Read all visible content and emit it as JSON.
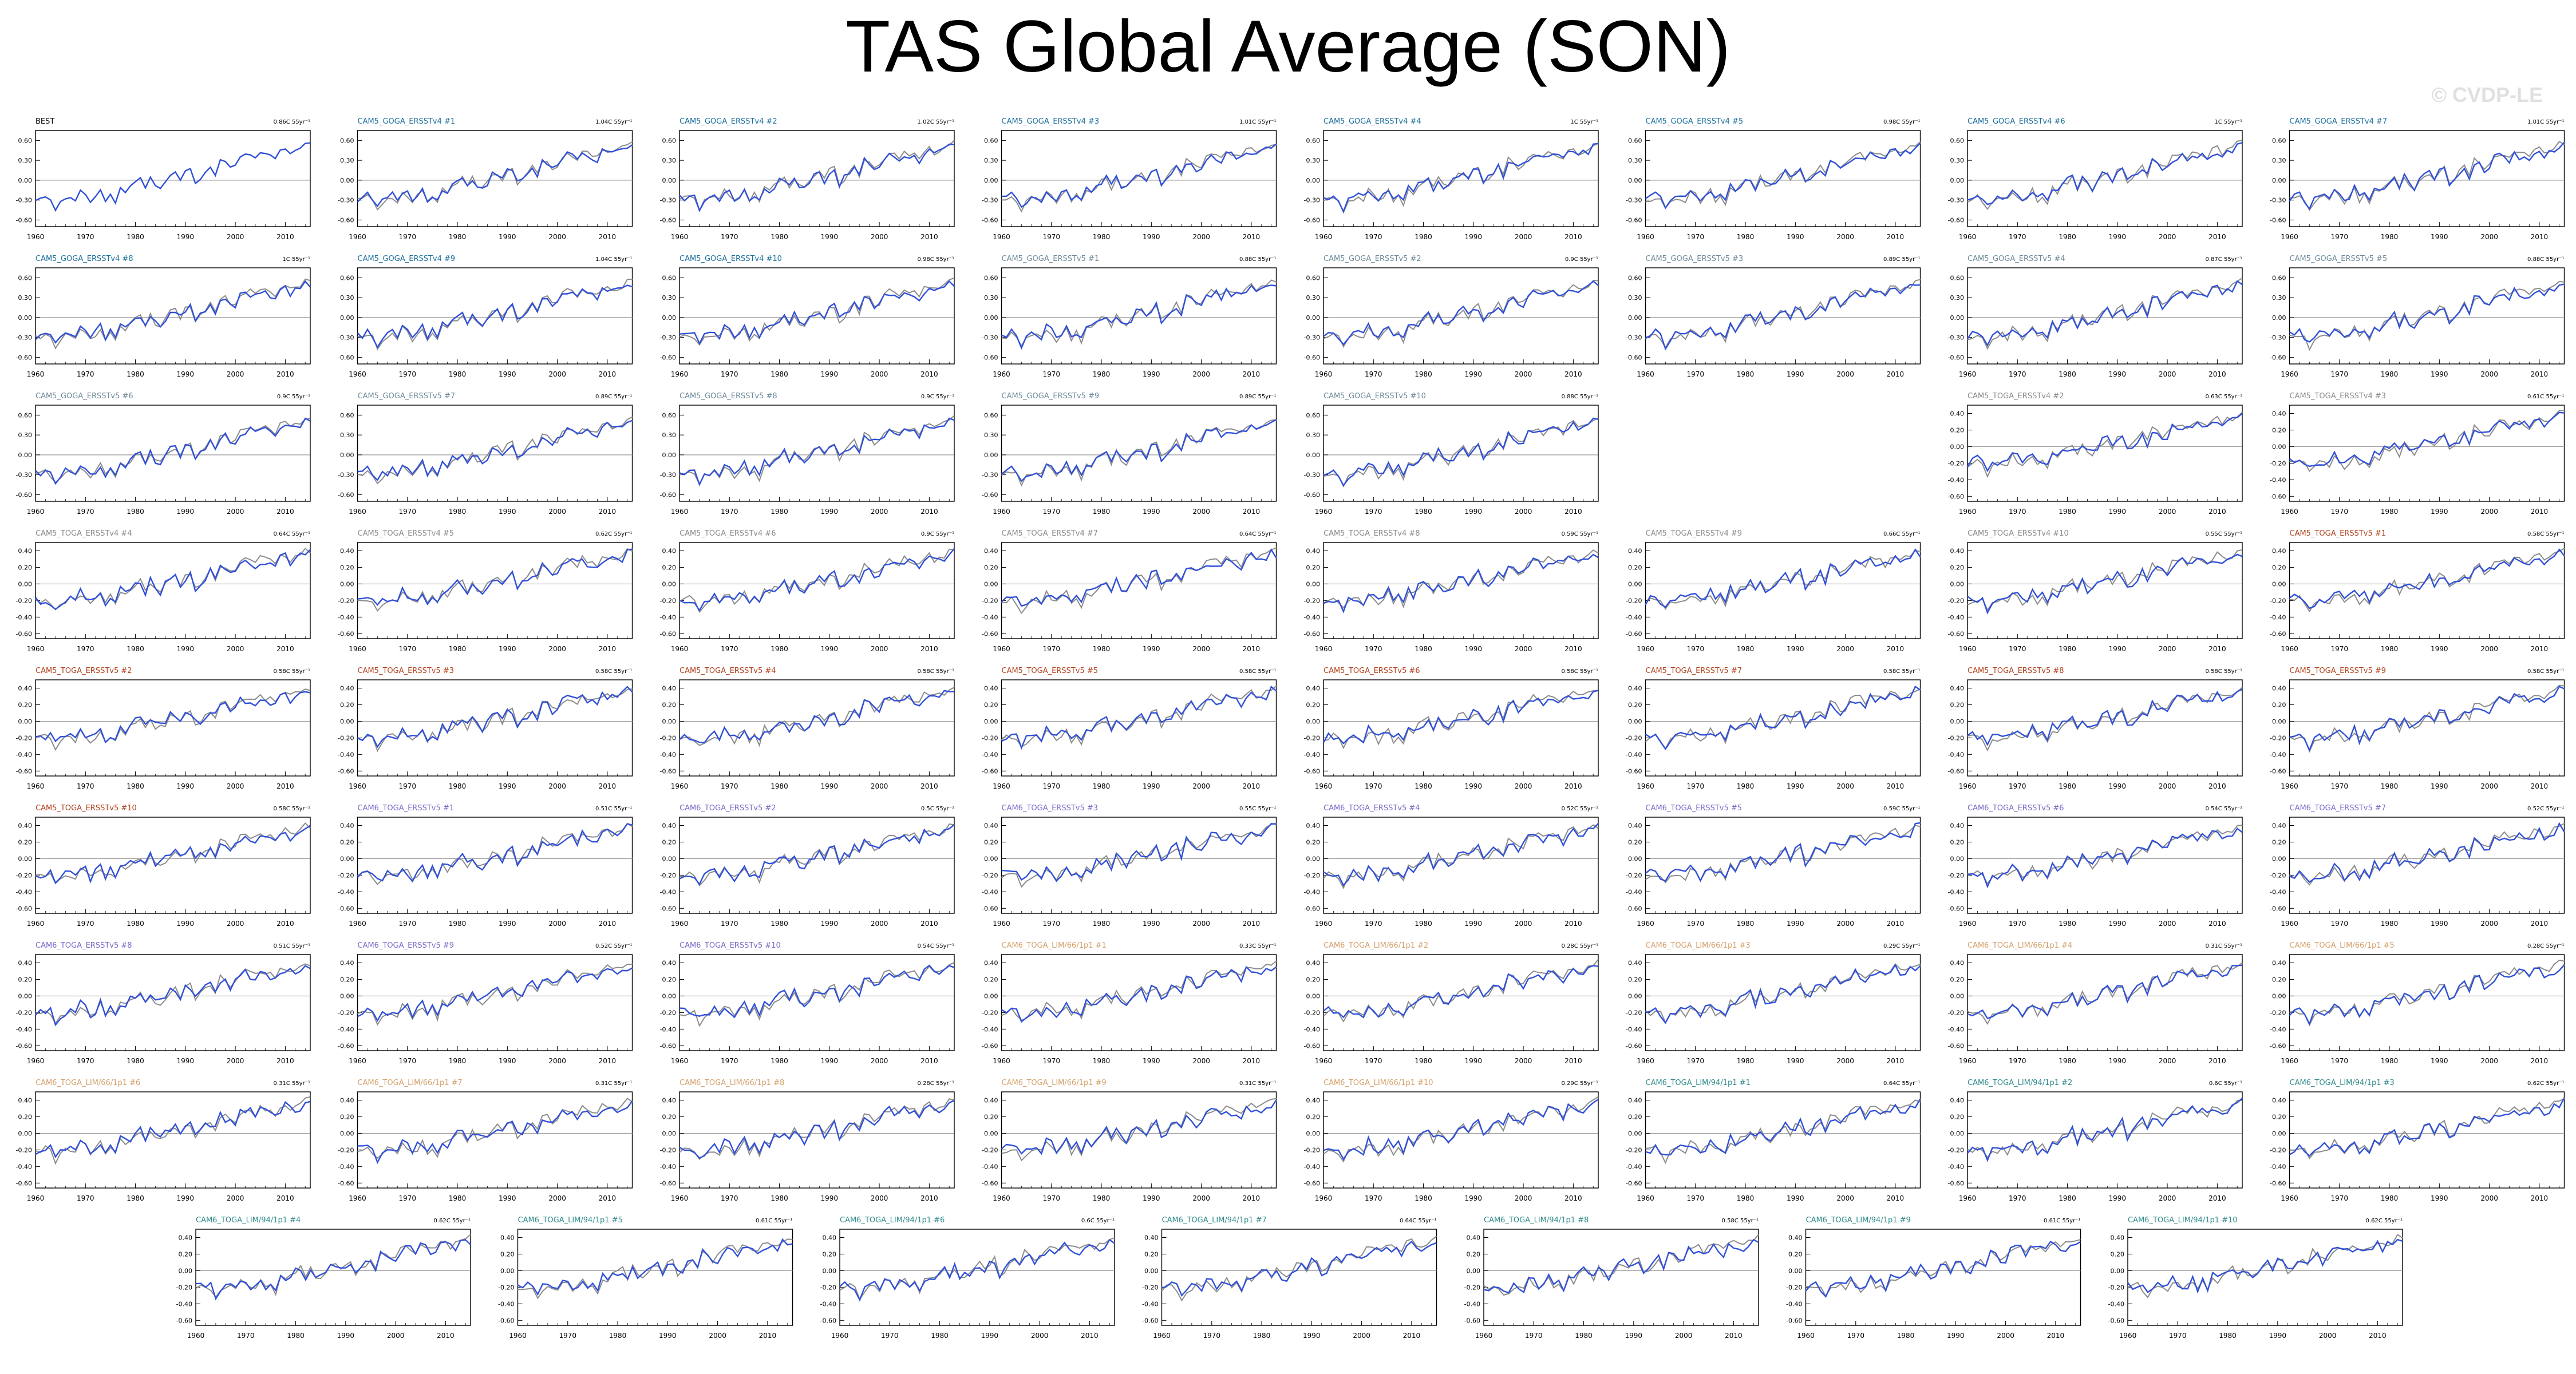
{
  "title": "TAS Global Average (SON)",
  "watermark": "© CVDP-LE",
  "chart_data": {
    "type": "line",
    "x_range": [
      1960,
      2015
    ],
    "x_ticks": [
      1960,
      1970,
      1980,
      1990,
      2000,
      2010
    ],
    "gridline_y": 0,
    "colors": {
      "obs": "#8c8c8c",
      "model": "#3050d8",
      "axis": "#000000"
    },
    "y_ticks_60": [
      "0.60",
      "0.30",
      "0.00",
      "-0.30",
      "-0.60"
    ],
    "y_ticks_40": [
      "0.40",
      "0.20",
      "0.00",
      "-0.20",
      "-0.40",
      "-0.60"
    ],
    "base_series": [
      -0.3,
      -0.28,
      -0.25,
      -0.3,
      -0.45,
      -0.33,
      -0.28,
      -0.26,
      -0.31,
      -0.16,
      -0.22,
      -0.33,
      -0.25,
      -0.15,
      -0.31,
      -0.22,
      -0.35,
      -0.12,
      -0.18,
      -0.08,
      -0.02,
      0.03,
      -0.12,
      0.04,
      -0.08,
      -0.12,
      -0.03,
      0.08,
      0.12,
      0.0,
      0.14,
      0.18,
      -0.05,
      0.02,
      0.12,
      0.2,
      0.08,
      0.31,
      0.29,
      0.19,
      0.22,
      0.35,
      0.4,
      0.39,
      0.33,
      0.42,
      0.4,
      0.38,
      0.33,
      0.45,
      0.48,
      0.41,
      0.44,
      0.48,
      0.55,
      0.56
    ],
    "panels": [
      {
        "name": "BEST",
        "trend": "0.86C 55yr⁻¹",
        "color": "#000000",
        "scale": "60",
        "obs": false
      },
      {
        "name": "CAM5_GOGA_ERSSTv4 #1",
        "trend": "1.04C 55yr⁻¹",
        "color": "#1b6f9e",
        "scale": "60",
        "obs": true
      },
      {
        "name": "CAM5_GOGA_ERSSTv4 #2",
        "trend": "1.02C 55yr⁻¹",
        "color": "#1b6f9e",
        "scale": "60",
        "obs": true
      },
      {
        "name": "CAM5_GOGA_ERSSTv4 #3",
        "trend": "1.01C 55yr⁻¹",
        "color": "#1b6f9e",
        "scale": "60",
        "obs": true
      },
      {
        "name": "CAM5_GOGA_ERSSTv4 #4",
        "trend": "1C 55yr⁻¹",
        "color": "#1b6f9e",
        "scale": "60",
        "obs": true
      },
      {
        "name": "CAM5_GOGA_ERSSTv4 #5",
        "trend": "0.98C 55yr⁻¹",
        "color": "#1b6f9e",
        "scale": "60",
        "obs": true
      },
      {
        "name": "CAM5_GOGA_ERSSTv4 #6",
        "trend": "1C 55yr⁻¹",
        "color": "#1b6f9e",
        "scale": "60",
        "obs": true
      },
      {
        "name": "CAM5_GOGA_ERSSTv4 #7",
        "trend": "1.01C 55yr⁻¹",
        "color": "#1b6f9e",
        "scale": "60",
        "obs": true
      },
      {
        "name": "CAM5_GOGA_ERSSTv4 #8",
        "trend": "1C 55yr⁻¹",
        "color": "#1b6f9e",
        "scale": "60",
        "obs": true
      },
      {
        "name": "CAM5_GOGA_ERSSTv4 #9",
        "trend": "1.04C 55yr⁻¹",
        "color": "#1b6f9e",
        "scale": "60",
        "obs": true
      },
      {
        "name": "CAM5_GOGA_ERSSTv4 #10",
        "trend": "0.98C 55yr⁻¹",
        "color": "#1b6f9e",
        "scale": "60",
        "obs": true
      },
      {
        "name": "CAM5_GOGA_ERSSTv5 #1",
        "trend": "0.88C 55yr⁻¹",
        "color": "#6e8a9a",
        "scale": "60",
        "obs": true
      },
      {
        "name": "CAM5_GOGA_ERSSTv5 #2",
        "trend": "0.9C 55yr⁻¹",
        "color": "#6e8a9a",
        "scale": "60",
        "obs": true
      },
      {
        "name": "CAM5_GOGA_ERSSTv5 #3",
        "trend": "0.89C 55yr⁻¹",
        "color": "#6e8a9a",
        "scale": "60",
        "obs": true
      },
      {
        "name": "CAM5_GOGA_ERSSTv5 #4",
        "trend": "0.87C 55yr⁻¹",
        "color": "#6e8a9a",
        "scale": "60",
        "obs": true
      },
      {
        "name": "CAM5_GOGA_ERSSTv5 #5",
        "trend": "0.88C 55yr⁻¹",
        "color": "#6e8a9a",
        "scale": "60",
        "obs": true
      },
      {
        "name": "CAM5_GOGA_ERSSTv5 #6",
        "trend": "0.9C 55yr⁻¹",
        "color": "#6e8a9a",
        "scale": "60",
        "obs": true
      },
      {
        "name": "CAM5_GOGA_ERSSTv5 #7",
        "trend": "0.89C 55yr⁻¹",
        "color": "#6e8a9a",
        "scale": "60",
        "obs": true
      },
      {
        "name": "CAM5_GOGA_ERSSTv5 #8",
        "trend": "0.9C 55yr⁻¹",
        "color": "#6e8a9a",
        "scale": "60",
        "obs": true
      },
      {
        "name": "CAM5_GOGA_ERSSTv5 #9",
        "trend": "0.89C 55yr⁻¹",
        "color": "#6e8a9a",
        "scale": "60",
        "obs": true
      },
      {
        "name": "CAM5_GOGA_ERSSTv5 #10",
        "trend": "0.88C 55yr⁻¹",
        "color": "#6e8a9a",
        "scale": "60",
        "obs": true
      },
      {
        "name": "CAM5_TOGA_ERSSTv4 #2",
        "trend": "0.63C 55yr⁻¹",
        "color": "#8a8a8a",
        "scale": "40",
        "obs": true
      },
      {
        "name": "CAM5_TOGA_ERSSTv4 #3",
        "trend": "0.61C 55yr⁻¹",
        "color": "#8a8a8a",
        "scale": "40",
        "obs": true
      },
      {
        "name": "CAM5_TOGA_ERSSTv4 #4",
        "trend": "0.64C 55yr⁻¹",
        "color": "#8a8a8a",
        "scale": "40",
        "obs": true
      },
      {
        "name": "CAM5_TOGA_ERSSTv4 #5",
        "trend": "0.62C 55yr⁻¹",
        "color": "#8a8a8a",
        "scale": "40",
        "obs": true
      },
      {
        "name": "CAM5_TOGA_ERSSTv4 #6",
        "trend": "0.9C 55yr⁻¹",
        "color": "#8a8a8a",
        "scale": "40",
        "obs": true
      },
      {
        "name": "CAM5_TOGA_ERSSTv4 #7",
        "trend": "0.64C 55yr⁻¹",
        "color": "#8a8a8a",
        "scale": "40",
        "obs": true
      },
      {
        "name": "CAM5_TOGA_ERSSTv4 #8",
        "trend": "0.59C 55yr⁻¹",
        "color": "#8a8a8a",
        "scale": "40",
        "obs": true
      },
      {
        "name": "CAM5_TOGA_ERSSTv4 #9",
        "trend": "0.66C 55yr⁻¹",
        "color": "#8a8a8a",
        "scale": "40",
        "obs": true
      },
      {
        "name": "CAM5_TOGA_ERSSTv4 #10",
        "trend": "0.55C 55yr⁻¹",
        "color": "#8a8a8a",
        "scale": "40",
        "obs": true
      },
      {
        "name": "CAM5_TOGA_ERSSTv5 #1",
        "trend": "0.58C 55yr⁻¹",
        "color": "#b2411c",
        "scale": "40",
        "obs": true
      },
      {
        "name": "CAM5_TOGA_ERSSTv5 #2",
        "trend": "0.58C 55yr⁻¹",
        "color": "#b2411c",
        "scale": "40",
        "obs": true
      },
      {
        "name": "CAM5_TOGA_ERSSTv5 #3",
        "trend": "0.58C 55yr⁻¹",
        "color": "#b2411c",
        "scale": "40",
        "obs": true
      },
      {
        "name": "CAM5_TOGA_ERSSTv5 #4",
        "trend": "0.58C 55yr⁻¹",
        "color": "#b2411c",
        "scale": "40",
        "obs": true
      },
      {
        "name": "CAM5_TOGA_ERSSTv5 #5",
        "trend": "0.58C 55yr⁻¹",
        "color": "#b2411c",
        "scale": "40",
        "obs": true
      },
      {
        "name": "CAM5_TOGA_ERSSTv5 #6",
        "trend": "0.58C 55yr⁻¹",
        "color": "#b2411c",
        "scale": "40",
        "obs": true
      },
      {
        "name": "CAM5_TOGA_ERSSTv5 #7",
        "trend": "0.58C 55yr⁻¹",
        "color": "#b2411c",
        "scale": "40",
        "obs": true
      },
      {
        "name": "CAM5_TOGA_ERSSTv5 #8",
        "trend": "0.58C 55yr⁻¹",
        "color": "#b2411c",
        "scale": "40",
        "obs": true
      },
      {
        "name": "CAM5_TOGA_ERSSTv5 #9",
        "trend": "0.58C 55yr⁻¹",
        "color": "#b2411c",
        "scale": "40",
        "obs": true
      },
      {
        "name": "CAM5_TOGA_ERSSTv5 #10",
        "trend": "0.58C 55yr⁻¹",
        "color": "#b2411c",
        "scale": "40",
        "obs": true
      },
      {
        "name": "CAM6_TOGA_ERSSTv5 #1",
        "trend": "0.51C 55yr⁻¹",
        "color": "#7b68c8",
        "scale": "40",
        "obs": true
      },
      {
        "name": "CAM6_TOGA_ERSSTv5 #2",
        "trend": "0.5C 55yr⁻¹",
        "color": "#7b68c8",
        "scale": "40",
        "obs": true
      },
      {
        "name": "CAM6_TOGA_ERSSTv5 #3",
        "trend": "0.55C 55yr⁻¹",
        "color": "#7b68c8",
        "scale": "40",
        "obs": true
      },
      {
        "name": "CAM6_TOGA_ERSSTv5 #4",
        "trend": "0.52C 55yr⁻¹",
        "color": "#7b68c8",
        "scale": "40",
        "obs": true
      },
      {
        "name": "CAM6_TOGA_ERSSTv5 #5",
        "trend": "0.59C 55yr⁻¹",
        "color": "#7b68c8",
        "scale": "40",
        "obs": true
      },
      {
        "name": "CAM6_TOGA_ERSSTv5 #6",
        "trend": "0.54C 55yr⁻¹",
        "color": "#7b68c8",
        "scale": "40",
        "obs": true
      },
      {
        "name": "CAM6_TOGA_ERSSTv5 #7",
        "trend": "0.52C 55yr⁻¹",
        "color": "#7b68c8",
        "scale": "40",
        "obs": true
      },
      {
        "name": "CAM6_TOGA_ERSSTv5 #8",
        "trend": "0.51C 55yr⁻¹",
        "color": "#7b68c8",
        "scale": "40",
        "obs": true
      },
      {
        "name": "CAM6_TOGA_ERSSTv5 #9",
        "trend": "0.52C 55yr⁻¹",
        "color": "#7b68c8",
        "scale": "40",
        "obs": true
      },
      {
        "name": "CAM6_TOGA_ERSSTv5 #10",
        "trend": "0.54C 55yr⁻¹",
        "color": "#7b68c8",
        "scale": "40",
        "obs": true
      },
      {
        "name": "CAM6_TOGA_LIM/66/1p1 #1",
        "trend": "0.33C 55yr⁻¹",
        "color": "#d4a06a",
        "scale": "40",
        "obs": true
      },
      {
        "name": "CAM6_TOGA_LIM/66/1p1 #2",
        "trend": "0.28C 55yr⁻¹",
        "color": "#d4a06a",
        "scale": "40",
        "obs": true
      },
      {
        "name": "CAM6_TOGA_LIM/66/1p1 #3",
        "trend": "0.29C 55yr⁻¹",
        "color": "#d4a06a",
        "scale": "40",
        "obs": true
      },
      {
        "name": "CAM6_TOGA_LIM/66/1p1 #4",
        "trend": "0.31C 55yr⁻¹",
        "color": "#d4a06a",
        "scale": "40",
        "obs": true
      },
      {
        "name": "CAM6_TOGA_LIM/66/1p1 #5",
        "trend": "0.28C 55yr⁻¹",
        "color": "#d4a06a",
        "scale": "40",
        "obs": true
      },
      {
        "name": "CAM6_TOGA_LIM/66/1p1 #6",
        "trend": "0.31C 55yr⁻¹",
        "color": "#d4a06a",
        "scale": "40",
        "obs": true
      },
      {
        "name": "CAM6_TOGA_LIM/66/1p1 #7",
        "trend": "0.31C 55yr⁻¹",
        "color": "#d4a06a",
        "scale": "40",
        "obs": true
      },
      {
        "name": "CAM6_TOGA_LIM/66/1p1 #8",
        "trend": "0.28C 55yr⁻¹",
        "color": "#d4a06a",
        "scale": "40",
        "obs": true
      },
      {
        "name": "CAM6_TOGA_LIM/66/1p1 #9",
        "trend": "0.31C 55yr⁻¹",
        "color": "#d4a06a",
        "scale": "40",
        "obs": true
      },
      {
        "name": "CAM6_TOGA_LIM/66/1p1 #10",
        "trend": "0.29C 55yr⁻¹",
        "color": "#d4a06a",
        "scale": "40",
        "obs": true
      },
      {
        "name": "CAM6_TOGA_LIM/94/1p1 #1",
        "trend": "0.64C 55yr⁻¹",
        "color": "#2f8a8a",
        "scale": "40",
        "obs": true
      },
      {
        "name": "CAM6_TOGA_LIM/94/1p1 #2",
        "trend": "0.6C 55yr⁻¹",
        "color": "#2f8a8a",
        "scale": "40",
        "obs": true
      },
      {
        "name": "CAM6_TOGA_LIM/94/1p1 #3",
        "trend": "0.62C 55yr⁻¹",
        "color": "#2f8a8a",
        "scale": "40",
        "obs": true
      },
      {
        "name": "CAM6_TOGA_LIM/94/1p1 #4",
        "trend": "0.62C 55yr⁻¹",
        "color": "#2f8a8a",
        "scale": "40",
        "obs": true
      },
      {
        "name": "CAM6_TOGA_LIM/94/1p1 #5",
        "trend": "0.61C 55yr⁻¹",
        "color": "#2f8a8a",
        "scale": "40",
        "obs": true
      },
      {
        "name": "CAM6_TOGA_LIM/94/1p1 #6",
        "trend": "0.6C 55yr⁻¹",
        "color": "#2f8a8a",
        "scale": "40",
        "obs": true
      },
      {
        "name": "CAM6_TOGA_LIM/94/1p1 #7",
        "trend": "0.64C 55yr⁻¹",
        "color": "#2f8a8a",
        "scale": "40",
        "obs": true
      },
      {
        "name": "CAM6_TOGA_LIM/94/1p1 #8",
        "trend": "0.58C 55yr⁻¹",
        "color": "#2f8a8a",
        "scale": "40",
        "obs": true
      },
      {
        "name": "CAM6_TOGA_LIM/94/1p1 #9",
        "trend": "0.61C 55yr⁻¹",
        "color": "#2f8a8a",
        "scale": "40",
        "obs": true
      },
      {
        "name": "CAM6_TOGA_LIM/94/1p1 #10",
        "trend": "0.62C 55yr⁻¹",
        "color": "#2f8a8a",
        "scale": "40",
        "obs": true
      }
    ]
  }
}
